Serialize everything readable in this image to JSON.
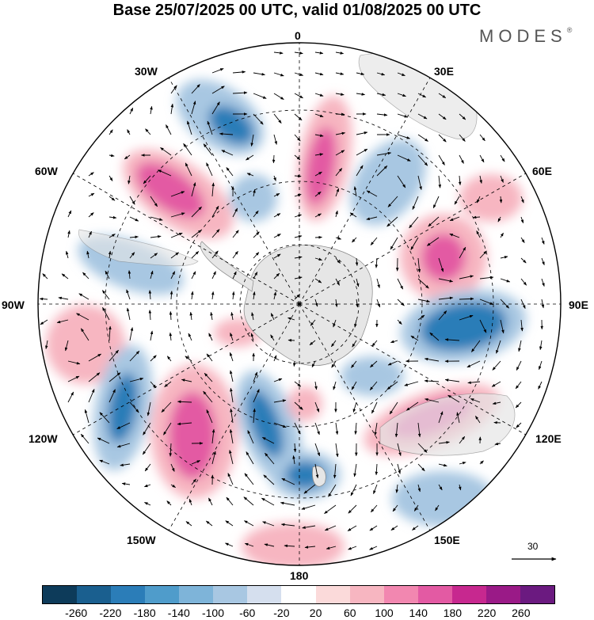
{
  "title": "Base 25/07/2025 00 UTC, valid 01/08/2025 00 UTC",
  "brand": {
    "text": "MODES",
    "mark": "®"
  },
  "longitude_labels": {
    "lon_0": "0",
    "lon_30e": "30E",
    "lon_60e": "60E",
    "lon_90e": "90E",
    "lon_120e": "120E",
    "lon_150e": "150E",
    "lon_180": "180",
    "lon_150w": "150W",
    "lon_120w": "120W",
    "lon_90w": "90W",
    "lon_60w": "60W",
    "lon_30w": "30W"
  },
  "reference_vector": {
    "value": "30"
  },
  "colorbar": {
    "colors": [
      "#0d3b5a",
      "#1a5f8f",
      "#2b7db8",
      "#4f9ccb",
      "#7eb4d9",
      "#a8c7e2",
      "#d5dfee",
      "#ffffff",
      "#fbdada",
      "#f7b6c1",
      "#f287b0",
      "#e35aa3",
      "#c7288f",
      "#9a1a87",
      "#6b1a80"
    ],
    "tick_labels": [
      "-260",
      "-220",
      "-180",
      "-140",
      "-100",
      "-60",
      "-20",
      "20",
      "60",
      "100",
      "140",
      "180",
      "220",
      "260"
    ]
  },
  "anomaly_colors": {
    "negative_strong": "#2b7db8",
    "negative_weak": "#a8c7e2",
    "positive_strong": "#e35aa3",
    "positive_weak": "#f7b6c1",
    "land": "#e6e6e6"
  }
}
